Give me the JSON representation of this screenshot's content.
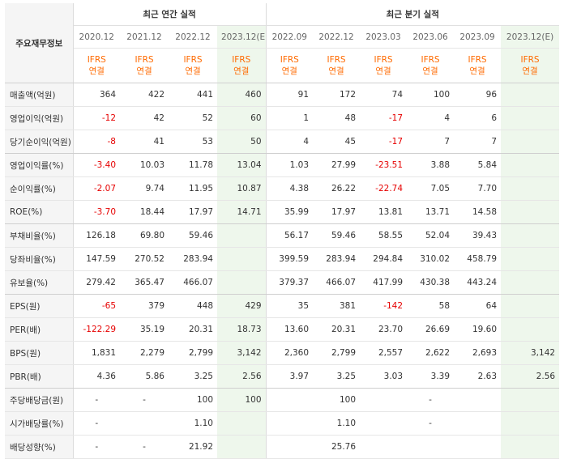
{
  "header": {
    "corner_label": "주요재무정보",
    "annual_title": "최근 연간 실적",
    "quarter_title": "최근 분기 실적",
    "annual_periods": [
      "2020.12",
      "2021.12",
      "2022.12",
      "2023.12(E)"
    ],
    "quarter_periods": [
      "2022.09",
      "2022.12",
      "2023.03",
      "2023.06",
      "2023.09",
      "2023.12(E)"
    ],
    "basis_line1": "IFRS",
    "basis_line2": "연결"
  },
  "rows": [
    {
      "label": "매출액(억원)",
      "values": [
        "364",
        "422",
        "441",
        "460",
        "91",
        "172",
        "74",
        "100",
        "96",
        ""
      ]
    },
    {
      "label": "영업이익(억원)",
      "values": [
        "-12",
        "42",
        "52",
        "60",
        "1",
        "48",
        "-17",
        "4",
        "6",
        ""
      ]
    },
    {
      "label": "당기순이익(억원)",
      "values": [
        "-8",
        "41",
        "53",
        "50",
        "4",
        "45",
        "-17",
        "7",
        "7",
        ""
      ]
    },
    {
      "label": "영업이익률(%)",
      "values": [
        "-3.40",
        "10.03",
        "11.78",
        "13.04",
        "1.03",
        "27.99",
        "-23.51",
        "3.88",
        "5.84",
        ""
      ]
    },
    {
      "label": "순이익률(%)",
      "values": [
        "-2.07",
        "9.74",
        "11.95",
        "10.87",
        "4.38",
        "26.22",
        "-22.74",
        "7.05",
        "7.70",
        ""
      ]
    },
    {
      "label": "ROE(%)",
      "values": [
        "-3.70",
        "18.44",
        "17.97",
        "14.71",
        "35.99",
        "17.97",
        "13.81",
        "13.71",
        "14.58",
        ""
      ]
    },
    {
      "label": "부채비율(%)",
      "values": [
        "126.18",
        "69.80",
        "59.46",
        "",
        "56.17",
        "59.46",
        "58.55",
        "52.04",
        "39.43",
        ""
      ]
    },
    {
      "label": "당좌비율(%)",
      "values": [
        "147.59",
        "270.52",
        "283.94",
        "",
        "399.59",
        "283.94",
        "294.84",
        "310.02",
        "458.79",
        ""
      ]
    },
    {
      "label": "유보율(%)",
      "values": [
        "279.42",
        "365.47",
        "466.07",
        "",
        "379.37",
        "466.07",
        "417.99",
        "430.38",
        "443.24",
        ""
      ]
    },
    {
      "label": "EPS(원)",
      "values": [
        "-65",
        "379",
        "448",
        "429",
        "35",
        "381",
        "-142",
        "58",
        "64",
        ""
      ]
    },
    {
      "label": "PER(배)",
      "values": [
        "-122.29",
        "35.19",
        "20.31",
        "18.73",
        "13.60",
        "20.31",
        "23.70",
        "26.69",
        "19.60",
        ""
      ]
    },
    {
      "label": "BPS(원)",
      "values": [
        "1,831",
        "2,279",
        "2,799",
        "3,142",
        "2,360",
        "2,799",
        "2,557",
        "2,622",
        "2,693",
        "3,142"
      ]
    },
    {
      "label": "PBR(배)",
      "values": [
        "4.36",
        "5.86",
        "3.25",
        "2.56",
        "3.97",
        "3.25",
        "3.03",
        "3.39",
        "2.63",
        "2.56"
      ]
    },
    {
      "label": "주당배당금(원)",
      "values": [
        "-",
        "-",
        "100",
        "100",
        "",
        "100",
        "",
        "-",
        "",
        ""
      ]
    },
    {
      "label": "시가배당률(%)",
      "values": [
        "-",
        "",
        "1.10",
        "",
        "",
        "1.10",
        "",
        "-",
        "",
        ""
      ]
    },
    {
      "label": "배당성향(%)",
      "values": [
        "-",
        "-",
        "21.92",
        "",
        "",
        "25.76",
        "",
        "",
        "",
        ""
      ]
    }
  ],
  "colors": {
    "negative": "#e60000",
    "ifrs": "#ff6a00",
    "estimate_bg": "#eef7ec",
    "label_bg": "#f5f5f5"
  }
}
